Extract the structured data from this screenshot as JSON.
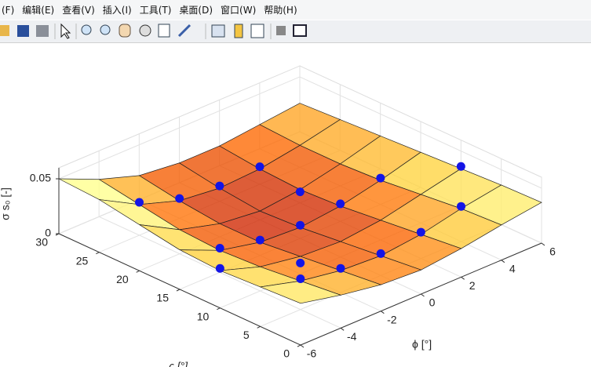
{
  "menu": [
    "(F)",
    "编辑(E)",
    "查看(V)",
    "插入(I)",
    "工具(T)",
    "桌面(D)",
    "窗口(W)",
    "帮助(H)"
  ],
  "chart_data": {
    "type": "surface3d",
    "xlabel": "ϕ [°]",
    "ylabel": "ς [°]",
    "zlabel": "σ s₀ [-]",
    "x": [
      -6,
      -4,
      -2,
      0,
      2,
      4,
      6
    ],
    "y": [
      0,
      5,
      10,
      15,
      20,
      25,
      30
    ],
    "z": [
      [
        0.038,
        0.03,
        0.024,
        0.022,
        0.026,
        0.032,
        0.037
      ],
      [
        0.036,
        0.026,
        0.02,
        0.018,
        0.022,
        0.03,
        0.036
      ],
      [
        0.034,
        0.022,
        0.016,
        0.014,
        0.018,
        0.026,
        0.034
      ],
      [
        0.036,
        0.02,
        0.012,
        0.01,
        0.014,
        0.022,
        0.032
      ],
      [
        0.042,
        0.022,
        0.012,
        0.008,
        0.012,
        0.02,
        0.03
      ],
      [
        0.048,
        0.028,
        0.016,
        0.012,
        0.014,
        0.02,
        0.028
      ],
      [
        0.05,
        0.034,
        0.022,
        0.018,
        0.018,
        0.022,
        0.026
      ]
    ],
    "colormap": [
      "#5a0000",
      "#c81e00",
      "#ff6a00",
      "#ffd23c",
      "#ffff8c"
    ],
    "surface_alpha": 0.78,
    "points": {
      "color": "#1414e6",
      "x": [
        -4,
        -2,
        0,
        2,
        -4,
        -2,
        0,
        2,
        4,
        -4,
        -2,
        0,
        2,
        4,
        6,
        -6,
        -2,
        2
      ],
      "y": [
        25,
        25,
        25,
        25,
        15,
        15,
        15,
        15,
        15,
        5,
        5,
        5,
        5,
        5,
        10,
        10,
        10,
        20
      ],
      "z": [
        0.03,
        0.018,
        0.014,
        0.016,
        0.022,
        0.014,
        0.012,
        0.016,
        0.024,
        0.028,
        0.022,
        0.02,
        0.024,
        0.032,
        0.036,
        0.036,
        0.01,
        0.01
      ]
    },
    "xlim": [
      -6,
      6
    ],
    "ylim": [
      0,
      30
    ],
    "zlim": [
      0,
      0.06
    ],
    "xticks": [
      -6,
      -4,
      -2,
      0,
      2,
      4,
      6
    ],
    "yticks": [
      0,
      5,
      10,
      15,
      20,
      25,
      30
    ],
    "zticks": [
      0,
      0.05
    ],
    "grid": true
  }
}
